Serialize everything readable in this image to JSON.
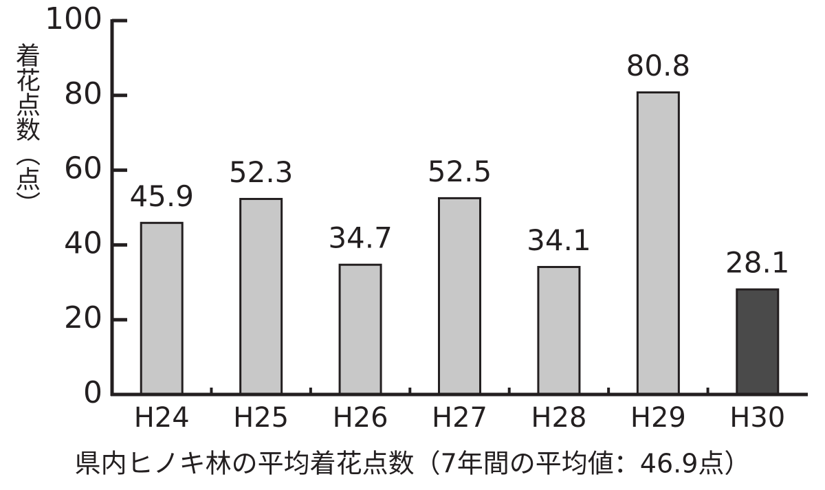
{
  "chart_data": {
    "type": "bar",
    "y_label": "着花点数（点）",
    "caption": "県内ヒノキ林の平均着花点数（7年間の平均値：46.9点）",
    "categories": [
      "H24",
      "H25",
      "H26",
      "H27",
      "H28",
      "H29",
      "H30"
    ],
    "values": [
      45.9,
      52.3,
      34.7,
      52.5,
      34.1,
      80.8,
      28.1
    ],
    "colors": [
      "#c8c8c8",
      "#c8c8c8",
      "#c8c8c8",
      "#c8c8c8",
      "#c8c8c8",
      "#c8c8c8",
      "#4a4a4a"
    ],
    "ylim": [
      0,
      100
    ],
    "yticks": [
      0,
      20,
      40,
      60,
      80,
      100
    ],
    "grid": false
  }
}
